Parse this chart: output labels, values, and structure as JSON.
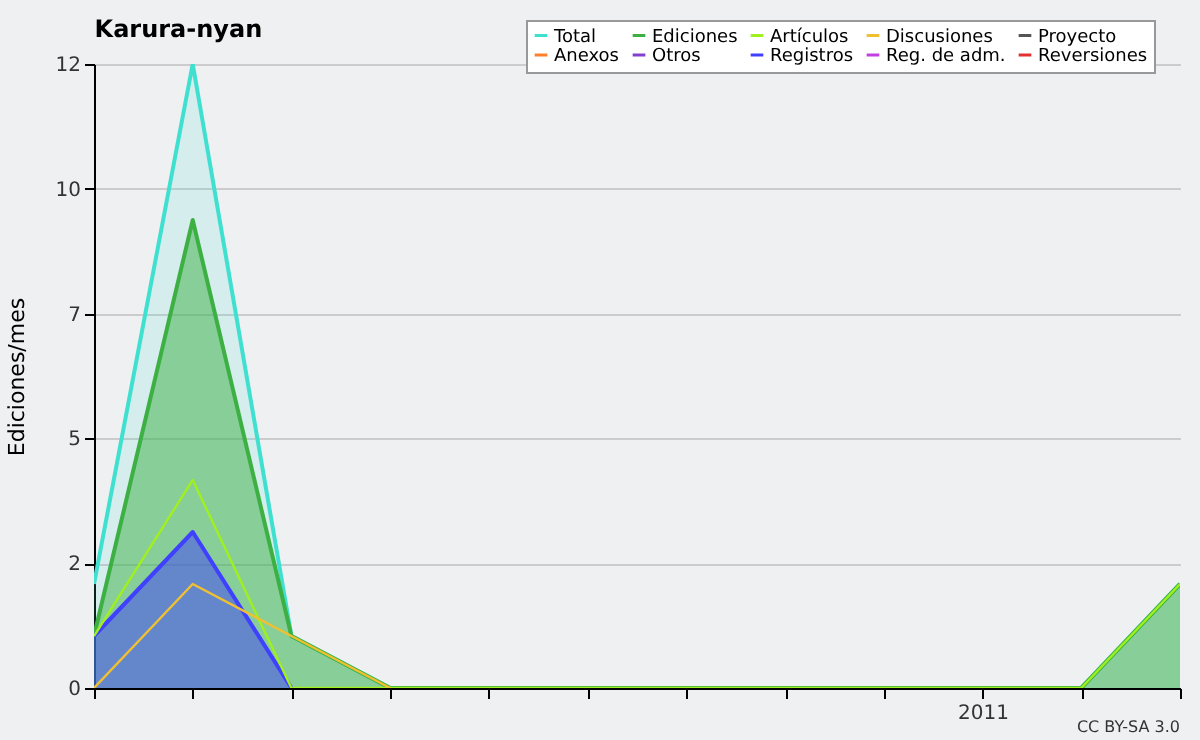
{
  "chart_data": {
    "type": "line",
    "title": "Karura-nyan",
    "ylabel": "Ediciones/mes",
    "categories": [
      null,
      null,
      null,
      null,
      null,
      null,
      null,
      null,
      null,
      "2011",
      null,
      null
    ],
    "series": [
      {
        "name": "Total",
        "type": "area",
        "color": "#40e0d0",
        "values": [
          2,
          12,
          1,
          0,
          0,
          0,
          0,
          0,
          0,
          0,
          0,
          2
        ]
      },
      {
        "name": "Ediciones",
        "type": "area",
        "color": "#3cb043",
        "values": [
          1,
          9,
          1,
          0,
          0,
          0,
          0,
          0,
          0,
          0,
          0,
          2
        ]
      },
      {
        "name": "Artículos",
        "color": "#a0f020",
        "values": [
          1,
          4,
          0,
          0,
          0,
          0,
          0,
          0,
          0,
          0,
          0,
          2
        ]
      },
      {
        "name": "Discusiones",
        "color": "#f0c030",
        "values": [
          0,
          2,
          1,
          0,
          null,
          null,
          null,
          null,
          null,
          null,
          null,
          null
        ]
      },
      {
        "name": "Proyecto",
        "type": "line",
        "color": "#555555",
        "values": [
          null,
          null,
          null,
          null,
          null,
          null,
          null,
          null,
          null,
          null,
          null,
          null
        ]
      },
      {
        "name": "Anexos",
        "type": "line",
        "color": "#ff7f2a",
        "values": [
          null,
          null,
          null,
          null,
          null,
          null,
          null,
          null,
          null,
          null,
          null,
          null
        ]
      },
      {
        "name": "Otros",
        "type": "line",
        "color": "#8040d0",
        "values": [
          null,
          null,
          null,
          null,
          null,
          null,
          null,
          null,
          null,
          null,
          null,
          null
        ]
      },
      {
        "name": "Registros",
        "type": "area",
        "color": "#4040ff",
        "values": [
          1,
          3,
          0,
          null,
          null,
          null,
          null,
          null,
          null,
          null,
          null,
          null
        ]
      },
      {
        "name": "Reg. de adm.",
        "type": "line",
        "color": "#c040e0",
        "values": [
          null,
          null,
          null,
          null,
          null,
          null,
          null,
          null,
          null,
          null,
          null,
          null
        ]
      },
      {
        "name": "Reversiones",
        "type": "line",
        "color": "#e03030",
        "values": [
          null,
          null,
          null,
          null,
          null,
          null,
          null,
          null,
          null,
          null,
          null,
          null
        ]
      }
    ],
    "ylim": [
      0,
      12
    ],
    "yticks": [
      {
        "value": 0,
        "label": "0"
      },
      {
        "value": 2.4,
        "label": "2"
      },
      {
        "value": 4.8,
        "label": "5"
      },
      {
        "value": 7.2,
        "label": "7"
      },
      {
        "value": 9.6,
        "label": "10"
      },
      {
        "value": 12,
        "label": "12"
      }
    ],
    "grid": "y",
    "legend": "top right",
    "marker": "none",
    "line_style": "solid",
    "annotations": [
      "CC BY-SA 3.0"
    ]
  }
}
